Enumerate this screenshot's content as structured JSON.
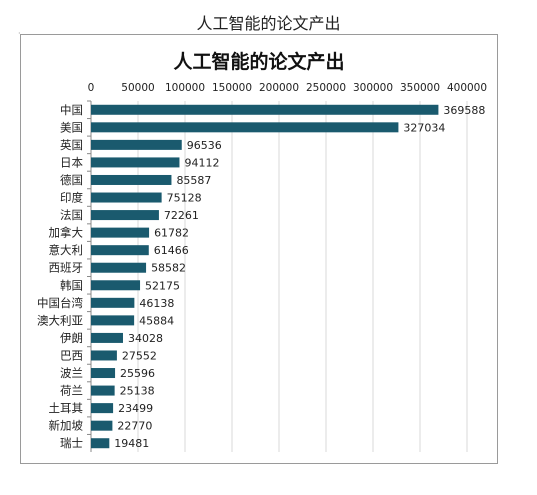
{
  "page": {
    "title": "人工智能的论文产出"
  },
  "chart_data": {
    "type": "bar",
    "orientation": "horizontal",
    "title": "人工智能的论文产出",
    "xlabel": "",
    "ylabel": "",
    "xlim": [
      0,
      400000
    ],
    "x_ticks": [
      0,
      50000,
      100000,
      150000,
      200000,
      250000,
      300000,
      350000,
      400000
    ],
    "x_axis_position": "top",
    "grid": true,
    "bar_color": "#1a5a6e",
    "categories": [
      "中国",
      "美国",
      "英国",
      "日本",
      "德国",
      "印度",
      "法国",
      "加拿大",
      "意大利",
      "西班牙",
      "韩国",
      "中国台湾",
      "澳大利亚",
      "伊朗",
      "巴西",
      "波兰",
      "荷兰",
      "土耳其",
      "新加坡",
      "瑞士"
    ],
    "values": [
      369588,
      327034,
      96536,
      94112,
      85587,
      75128,
      72261,
      61782,
      61466,
      58582,
      52175,
      46138,
      45884,
      34028,
      27552,
      25596,
      25138,
      23499,
      22770,
      19481
    ]
  }
}
